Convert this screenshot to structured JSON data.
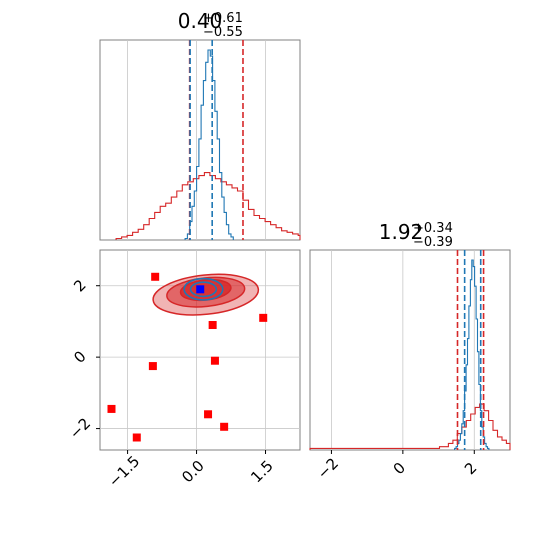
{
  "chart_data": {
    "type": "corner",
    "colors": {
      "blue": "#1f77b4",
      "red": "#d62728",
      "marker_red": "#ff0000",
      "marker_blue": "#0000ff",
      "grid": "#c8c8c8",
      "axis": "#808080"
    },
    "grid": true,
    "params": [
      {
        "title": {
          "base": "0.40",
          "sup": "+0.61",
          "sub": "−0.55"
        },
        "xlim": [
          -2.1,
          2.25
        ],
        "ticks": [
          -1.5,
          0.0,
          1.5
        ],
        "tick_labels": [
          "−1.5",
          "0.0",
          "1.5"
        ],
        "red_lines": [
          -0.15,
          1.01
        ],
        "blue_lines": [
          -0.14,
          0.34
        ],
        "blue_hist": {
          "edges_start": -0.25,
          "bin_width": 0.05,
          "values": [
            0.5,
            2,
            6,
            11,
            16,
            24,
            33,
            44,
            52,
            58,
            62,
            60,
            52,
            42,
            33,
            22,
            14,
            9,
            5,
            2,
            1
          ]
        },
        "red_hist": {
          "edges_start": -1.75,
          "bin_width": 0.12,
          "values": [
            0.5,
            1,
            1.5,
            2.5,
            3.5,
            5,
            7,
            9,
            11,
            12,
            14,
            16,
            18,
            19,
            20,
            21,
            22,
            21,
            20,
            19,
            18,
            17,
            16,
            13,
            10,
            8,
            7,
            6,
            5,
            4,
            3,
            2.5,
            2,
            1.5,
            1,
            0.5
          ]
        }
      },
      {
        "title": {
          "base": "1.92",
          "sup": "+0.34",
          "sub": "−0.39"
        },
        "xlim": [
          -2.6,
          3.0
        ],
        "ticks": [
          -2,
          0,
          2
        ],
        "tick_labels": [
          "−2",
          "0",
          "2"
        ],
        "red_lines": [
          1.53,
          2.26
        ],
        "blue_lines": [
          1.73,
          2.18
        ],
        "blue_hist": {
          "edges_start": 1.45,
          "bin_width": 0.04,
          "values": [
            0.5,
            1,
            2,
            3,
            5,
            8,
            12,
            18,
            26,
            34,
            44,
            52,
            58,
            56,
            50,
            40,
            30,
            20,
            12,
            7,
            4,
            2,
            1,
            0.5
          ]
        },
        "red_hist": {
          "edges_start": -2.6,
          "bin_width": 0.125,
          "values": [
            0.5,
            0.5,
            0.5,
            0.5,
            0.5,
            0.5,
            0.5,
            0.5,
            0.5,
            0.5,
            0.5,
            0.5,
            0.5,
            0.5,
            0.5,
            0.5,
            0.5,
            0.5,
            0.5,
            0.5,
            0.5,
            0.5,
            0.5,
            0.5,
            0.5,
            0.5,
            0.5,
            0.5,
            0.5,
            1,
            1,
            2,
            3,
            5,
            7,
            9,
            11,
            13,
            14,
            12,
            9,
            6,
            4,
            3,
            2,
            1.5
          ]
        }
      }
    ],
    "joint": {
      "xlim": [
        -2.1,
        2.25
      ],
      "ylim": [
        -2.6,
        3.0
      ],
      "xticks": [
        -1.5,
        0.0,
        1.5
      ],
      "yticks": [
        -2,
        0,
        2
      ],
      "red_contours": [
        {
          "cx": 0.2,
          "cy": 1.75,
          "rx": 1.15,
          "ry": 0.55,
          "angle": -6,
          "opacity": 0.35
        },
        {
          "cx": 0.2,
          "cy": 1.82,
          "rx": 0.85,
          "ry": 0.4,
          "angle": -6,
          "opacity": 0.55
        },
        {
          "cx": 0.2,
          "cy": 1.88,
          "rx": 0.55,
          "ry": 0.28,
          "angle": -6,
          "opacity": 0.8
        }
      ],
      "blue_contours": [
        {
          "cx": 0.15,
          "cy": 1.9,
          "rx": 0.42,
          "ry": 0.3,
          "angle": 0
        },
        {
          "cx": 0.15,
          "cy": 1.9,
          "rx": 0.28,
          "ry": 0.2,
          "angle": 0
        }
      ],
      "red_markers": [
        {
          "x": -0.9,
          "y": 2.25
        },
        {
          "x": 0.35,
          "y": 0.9
        },
        {
          "x": 1.45,
          "y": 1.1
        },
        {
          "x": -0.95,
          "y": -0.25
        },
        {
          "x": 0.4,
          "y": -0.1
        },
        {
          "x": -1.85,
          "y": -1.45
        },
        {
          "x": 0.25,
          "y": -1.6
        },
        {
          "x": 0.6,
          "y": -1.95
        },
        {
          "x": -1.3,
          "y": -2.25
        }
      ],
      "blue_marker": {
        "x": 0.08,
        "y": 1.9
      }
    }
  }
}
